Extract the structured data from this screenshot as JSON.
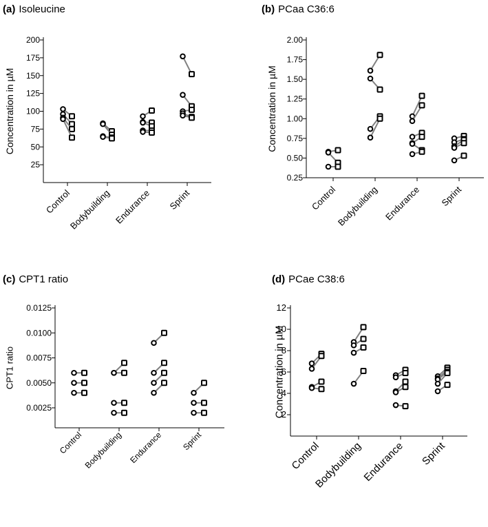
{
  "figure": {
    "panel_count": 4
  },
  "chart_data": [
    {
      "type": "scatter",
      "panel_letter": "(a)",
      "title": "Isoleucine",
      "ylabel": "Concentration in µM",
      "ylim": [
        0,
        200
      ],
      "yticks": [
        25,
        50,
        75,
        100,
        125,
        150,
        175,
        200
      ],
      "ytick_labels": [
        "25",
        "50",
        "75",
        "100",
        "125",
        "150",
        "175",
        "200"
      ],
      "categories": [
        "Control",
        "Bodybuilding",
        "Endurance",
        "Sprint"
      ],
      "pairs": [
        [
          [
            103,
            93
          ],
          [
            96,
            82
          ],
          [
            91,
            75
          ],
          [
            89,
            63
          ]
        ],
        [
          [
            83,
            72
          ],
          [
            82,
            67
          ],
          [
            65,
            63
          ],
          [
            64,
            62
          ]
        ],
        [
          [
            93,
            101
          ],
          [
            85,
            84
          ],
          [
            84,
            79
          ],
          [
            73,
            73
          ],
          [
            71,
            70
          ]
        ],
        [
          [
            177,
            152
          ],
          [
            123,
            107
          ],
          [
            100,
            102
          ],
          [
            97,
            92
          ],
          [
            94,
            91
          ]
        ]
      ]
    },
    {
      "type": "scatter",
      "panel_letter": "(b)",
      "title": "PCaa C36:6",
      "ylabel": "Concentration in µM",
      "ylim": [
        0.25,
        2.0
      ],
      "yticks": [
        0.25,
        0.5,
        0.75,
        1.0,
        1.25,
        1.5,
        1.75,
        2.0
      ],
      "ytick_labels": [
        "0.25",
        "0.50",
        "0.75",
        "1.00",
        "1.25",
        "1.50",
        "1.75",
        "2.00"
      ],
      "categories": [
        "Control",
        "Bodybuilding",
        "Endurance",
        "Sprint"
      ],
      "pairs": [
        [
          [
            0.58,
            0.6
          ],
          [
            0.57,
            0.44
          ],
          [
            0.39,
            0.39
          ]
        ],
        [
          [
            1.61,
            1.81
          ],
          [
            1.51,
            1.37
          ],
          [
            0.87,
            1.03
          ],
          [
            0.76,
            1.0
          ]
        ],
        [
          [
            1.03,
            1.29
          ],
          [
            0.97,
            1.17
          ],
          [
            0.77,
            0.82
          ],
          [
            0.69,
            0.77
          ],
          [
            0.68,
            0.6
          ],
          [
            0.55,
            0.58
          ]
        ],
        [
          [
            0.75,
            0.78
          ],
          [
            0.7,
            0.74
          ],
          [
            0.65,
            0.73
          ],
          [
            0.63,
            0.69
          ],
          [
            0.47,
            0.53
          ]
        ]
      ]
    },
    {
      "type": "scatter",
      "panel_letter": "(c)",
      "title": "CPT1 ratio",
      "ylabel": "CPT1 ratio",
      "ylim": [
        0.0005,
        0.0125
      ],
      "yticks": [
        0.0025,
        0.005,
        0.0075,
        0.01,
        0.0125
      ],
      "ytick_labels": [
        "0.0025",
        "0.0050",
        "0.0075",
        "0.0100",
        "0.0125"
      ],
      "categories": [
        "Control",
        "Bodybuilding",
        "Endurance",
        "Sprint"
      ],
      "pairs": [
        [
          [
            0.006,
            0.006
          ],
          [
            0.005,
            0.005
          ],
          [
            0.004,
            0.004
          ]
        ],
        [
          [
            0.006,
            0.007
          ],
          [
            0.006,
            0.006
          ],
          [
            0.003,
            0.003
          ],
          [
            0.002,
            0.002
          ]
        ],
        [
          [
            0.009,
            0.01
          ],
          [
            0.006,
            0.007
          ],
          [
            0.005,
            0.006
          ],
          [
            0.004,
            0.005
          ]
        ],
        [
          [
            0.004,
            0.005
          ],
          [
            0.003,
            0.003
          ],
          [
            0.002,
            0.002
          ]
        ]
      ]
    },
    {
      "type": "scatter",
      "panel_letter": "(d)",
      "title": "PCae C38:6",
      "ylabel": "Concentration in µM",
      "ylim": [
        0,
        12
      ],
      "yticks": [
        2,
        4,
        6,
        8,
        10,
        12
      ],
      "ytick_labels": [
        "2",
        "4",
        "6",
        "8",
        "10",
        "12"
      ],
      "categories": [
        "Control",
        "Bodybuilding",
        "Endurance",
        "Sprint"
      ],
      "pairs": [
        [
          [
            6.8,
            7.7
          ],
          [
            6.3,
            7.5
          ],
          [
            4.6,
            5.1
          ],
          [
            4.5,
            4.4
          ]
        ],
        [
          [
            8.8,
            10.2
          ],
          [
            8.5,
            9.1
          ],
          [
            7.8,
            8.3
          ],
          [
            4.9,
            6.1
          ]
        ],
        [
          [
            5.7,
            6.2
          ],
          [
            5.5,
            5.9
          ],
          [
            4.2,
            5.1
          ],
          [
            4.1,
            4.6
          ],
          [
            2.9,
            2.8
          ]
        ],
        [
          [
            5.6,
            6.4
          ],
          [
            5.4,
            6.2
          ],
          [
            5.3,
            6.0
          ],
          [
            4.9,
            5.9
          ],
          [
            4.2,
            4.8
          ]
        ]
      ]
    }
  ]
}
